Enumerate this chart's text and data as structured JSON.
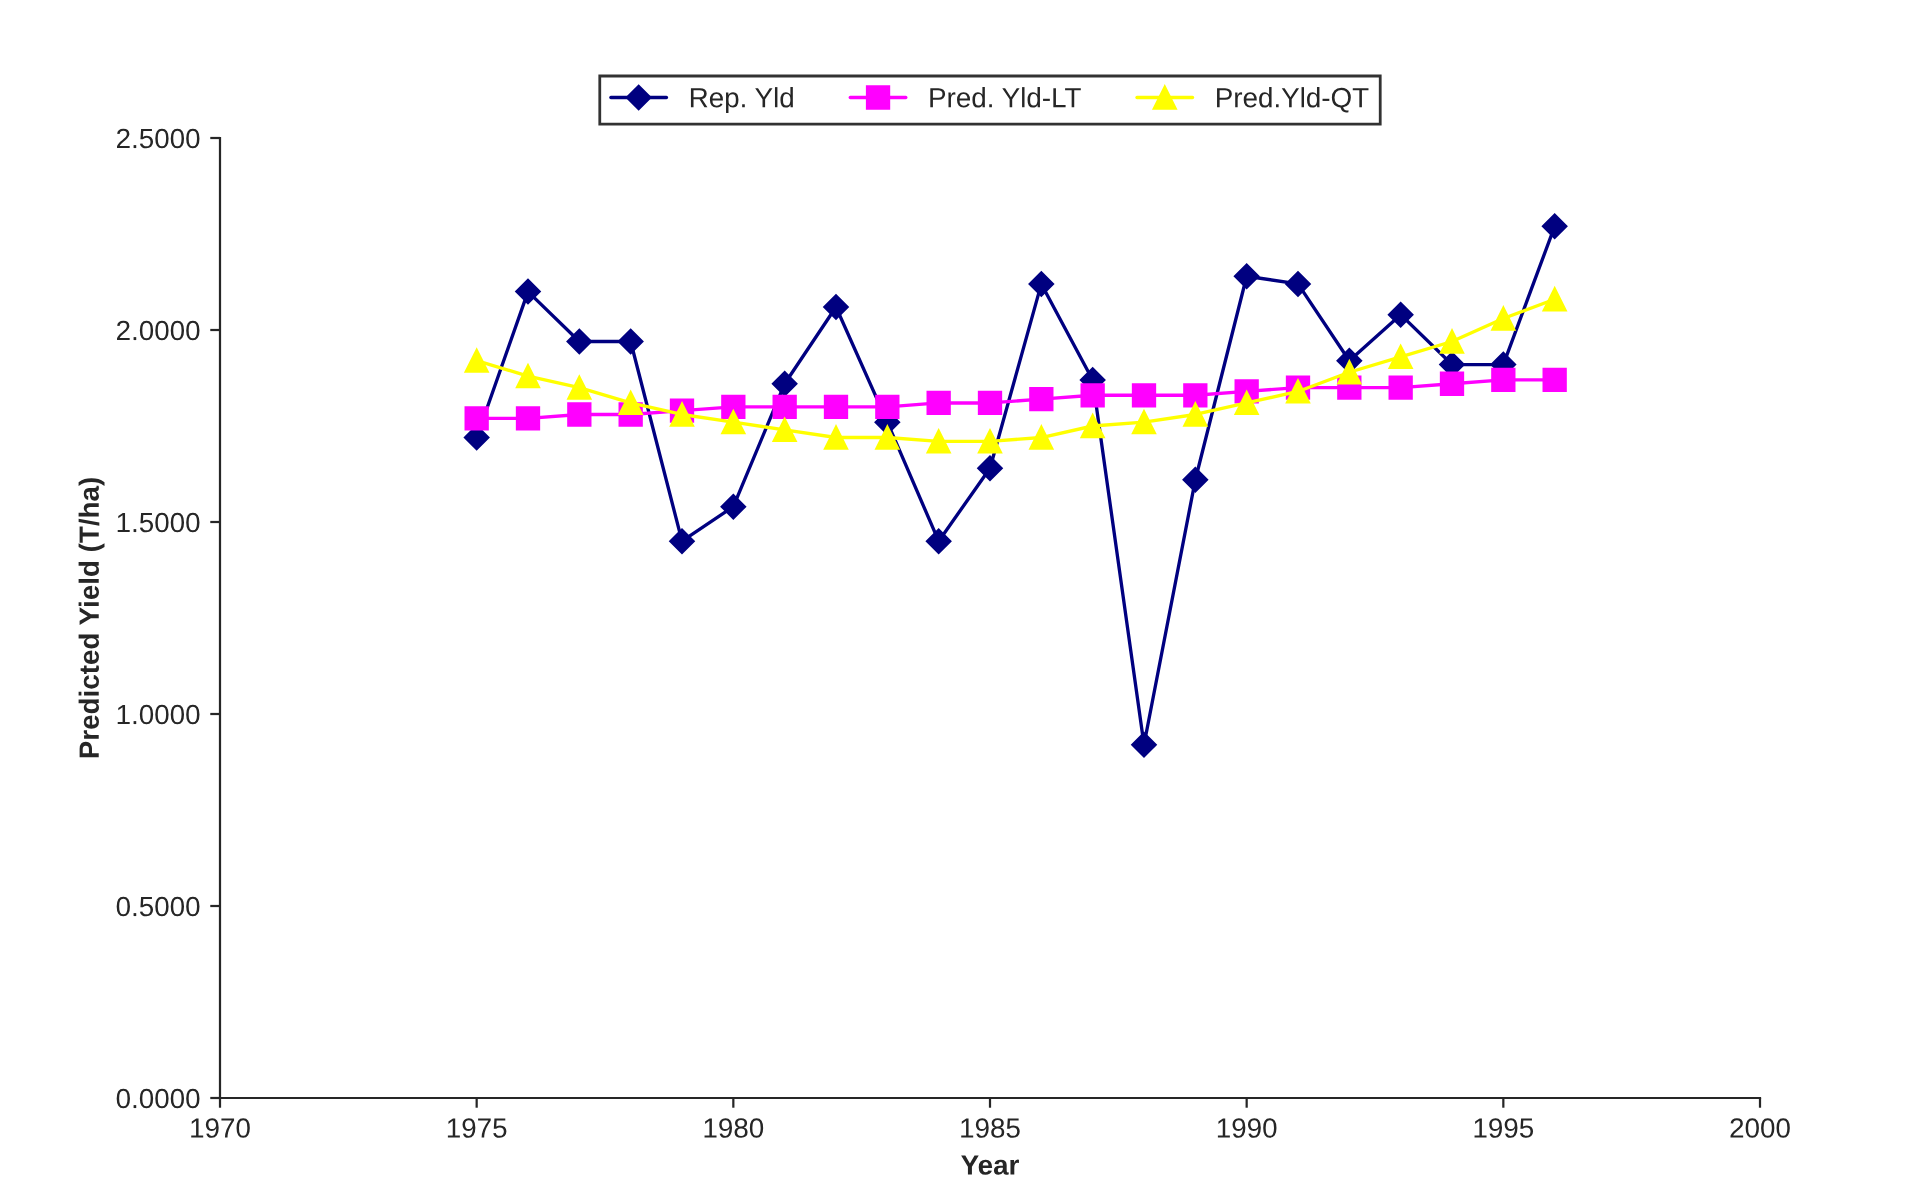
{
  "chart_data": {
    "type": "line",
    "xlabel": "Year",
    "ylabel": "Predicted Yield (T/ha)",
    "x": [
      1975,
      1976,
      1977,
      1978,
      1979,
      1980,
      1981,
      1982,
      1983,
      1984,
      1985,
      1986,
      1987,
      1988,
      1989,
      1990,
      1991,
      1992,
      1993,
      1994,
      1995,
      1996
    ],
    "series": [
      {
        "name": "Rep. Yld",
        "color": "#000080",
        "marker": "diamond",
        "values": [
          1.72,
          2.1,
          1.97,
          1.97,
          1.45,
          1.54,
          1.86,
          2.06,
          1.76,
          1.45,
          1.64,
          2.12,
          1.87,
          0.92,
          1.61,
          2.14,
          2.12,
          1.92,
          2.04,
          1.91,
          1.91,
          2.27
        ]
      },
      {
        "name": "Pred. Yld-LT",
        "color": "#ff00ff",
        "marker": "square",
        "values": [
          1.77,
          1.77,
          1.78,
          1.78,
          1.79,
          1.8,
          1.8,
          1.8,
          1.8,
          1.81,
          1.81,
          1.82,
          1.83,
          1.83,
          1.83,
          1.84,
          1.85,
          1.85,
          1.85,
          1.86,
          1.87,
          1.87
        ]
      },
      {
        "name": "Pred.Yld-QT",
        "color": "#ffff00",
        "marker": "triangle",
        "values": [
          1.92,
          1.88,
          1.85,
          1.81,
          1.78,
          1.76,
          1.74,
          1.72,
          1.72,
          1.71,
          1.71,
          1.72,
          1.75,
          1.76,
          1.78,
          1.81,
          1.84,
          1.89,
          1.93,
          1.97,
          2.03,
          2.08
        ]
      }
    ],
    "xlim": [
      1970,
      2000
    ],
    "xticks": [
      1970,
      1975,
      1980,
      1985,
      1990,
      1995,
      2000
    ],
    "ylim": [
      0,
      2.5
    ],
    "yticks": [
      {
        "value": 0,
        "label": "0.0000"
      },
      {
        "value": 0.5,
        "label": "0.5000"
      },
      {
        "value": 1,
        "label": "1.0000"
      },
      {
        "value": 1.5,
        "label": "1.5000"
      },
      {
        "value": 2,
        "label": "2.0000"
      },
      {
        "value": 2.5,
        "label": "2.5000"
      }
    ],
    "grid": false,
    "legend": "top",
    "line_style": "solid"
  }
}
